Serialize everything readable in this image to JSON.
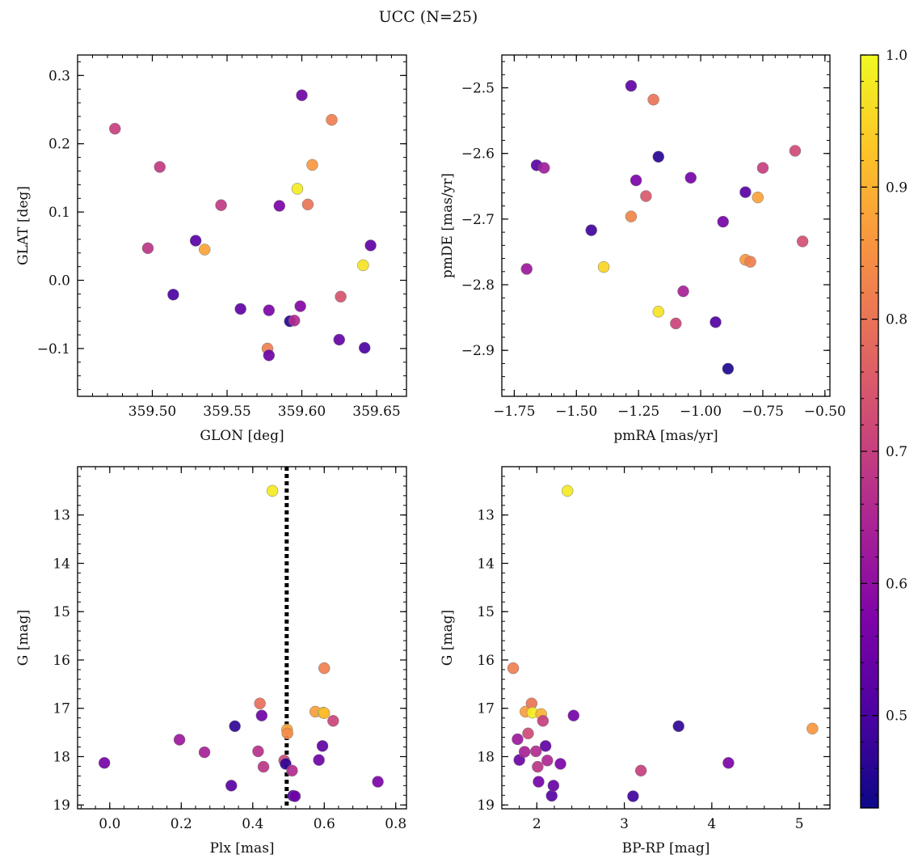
{
  "figure": {
    "title": "UCC (N=25)"
  },
  "colorbar": {
    "colormap": "plasma",
    "range": [
      0.43,
      1.0
    ],
    "ticks": [
      0.5,
      0.6,
      0.7,
      0.8,
      0.9,
      1.0
    ],
    "tick_labels": [
      "0.5",
      "0.6",
      "0.7",
      "0.8",
      "0.9",
      "1.0"
    ]
  },
  "chart_data": [
    {
      "type": "scatter",
      "id": "glon-glat",
      "xlabel": "GLON [deg]",
      "ylabel": "GLAT [deg]",
      "xlim": [
        359.45,
        359.67
      ],
      "ylim": [
        -0.17,
        0.33
      ],
      "xticks": [
        359.5,
        359.55,
        359.6,
        359.65
      ],
      "xtick_labels": [
        "359.50",
        "359.55",
        "359.60",
        "359.65"
      ],
      "yticks": [
        -0.1,
        0.0,
        0.1,
        0.2,
        0.3
      ],
      "ytick_labels": [
        "−0.1",
        "0.0",
        "0.1",
        "0.2",
        "0.3"
      ],
      "points": [
        {
          "x": 359.475,
          "y": 0.222,
          "c": 0.7
        },
        {
          "x": 359.505,
          "y": 0.166,
          "c": 0.69
        },
        {
          "x": 359.497,
          "y": 0.047,
          "c": 0.68
        },
        {
          "x": 359.514,
          "y": -0.021,
          "c": 0.5
        },
        {
          "x": 359.529,
          "y": 0.058,
          "c": 0.52
        },
        {
          "x": 359.535,
          "y": 0.045,
          "c": 0.88
        },
        {
          "x": 359.546,
          "y": 0.11,
          "c": 0.69
        },
        {
          "x": 359.559,
          "y": -0.042,
          "c": 0.53
        },
        {
          "x": 359.577,
          "y": -0.1,
          "c": 0.82
        },
        {
          "x": 359.578,
          "y": -0.11,
          "c": 0.55
        },
        {
          "x": 359.578,
          "y": -0.044,
          "c": 0.57
        },
        {
          "x": 359.585,
          "y": 0.109,
          "c": 0.57
        },
        {
          "x": 359.592,
          "y": -0.06,
          "c": 0.46
        },
        {
          "x": 359.595,
          "y": -0.059,
          "c": 0.66
        },
        {
          "x": 359.597,
          "y": 0.134,
          "c": 0.98
        },
        {
          "x": 359.599,
          "y": -0.038,
          "c": 0.58
        },
        {
          "x": 359.6,
          "y": 0.271,
          "c": 0.55
        },
        {
          "x": 359.604,
          "y": 0.111,
          "c": 0.8
        },
        {
          "x": 359.607,
          "y": 0.169,
          "c": 0.86
        },
        {
          "x": 359.62,
          "y": 0.235,
          "c": 0.82
        },
        {
          "x": 359.625,
          "y": -0.087,
          "c": 0.54
        },
        {
          "x": 359.626,
          "y": -0.024,
          "c": 0.74
        },
        {
          "x": 359.641,
          "y": 0.022,
          "c": 0.97
        },
        {
          "x": 359.642,
          "y": -0.099,
          "c": 0.5
        },
        {
          "x": 359.646,
          "y": 0.051,
          "c": 0.53
        }
      ]
    },
    {
      "type": "scatter",
      "id": "pmra-pmde",
      "xlabel": "pmRA [mas/yr]",
      "ylabel": "pmDE [mas/yr]",
      "xlim": [
        -1.8,
        -0.48
      ],
      "ylim": [
        -2.97,
        -2.45
      ],
      "xticks": [
        -1.75,
        -1.5,
        -1.25,
        -1.0,
        -0.75,
        -0.5
      ],
      "xtick_labels": [
        "−1.75",
        "−1.50",
        "−1.25",
        "−1.00",
        "−0.75",
        "−0.50"
      ],
      "yticks": [
        -2.9,
        -2.8,
        -2.7,
        -2.6,
        -2.5
      ],
      "ytick_labels": [
        "−2.9",
        "−2.8",
        "−2.7",
        "−2.6",
        "−2.5"
      ],
      "points": [
        {
          "x": -1.7,
          "y": -2.776,
          "c": 0.62
        },
        {
          "x": -1.66,
          "y": -2.618,
          "c": 0.52
        },
        {
          "x": -1.63,
          "y": -2.622,
          "c": 0.63
        },
        {
          "x": -1.44,
          "y": -2.717,
          "c": 0.49
        },
        {
          "x": -1.39,
          "y": -2.773,
          "c": 0.95
        },
        {
          "x": -1.28,
          "y": -2.497,
          "c": 0.53
        },
        {
          "x": -1.28,
          "y": -2.696,
          "c": 0.83
        },
        {
          "x": -1.26,
          "y": -2.641,
          "c": 0.57
        },
        {
          "x": -1.22,
          "y": -2.665,
          "c": 0.75
        },
        {
          "x": -1.19,
          "y": -2.518,
          "c": 0.8
        },
        {
          "x": -1.17,
          "y": -2.605,
          "c": 0.46
        },
        {
          "x": -1.17,
          "y": -2.841,
          "c": 0.97
        },
        {
          "x": -1.1,
          "y": -2.859,
          "c": 0.71
        },
        {
          "x": -1.07,
          "y": -2.81,
          "c": 0.64
        },
        {
          "x": -1.04,
          "y": -2.637,
          "c": 0.56
        },
        {
          "x": -0.94,
          "y": -2.857,
          "c": 0.51
        },
        {
          "x": -0.91,
          "y": -2.704,
          "c": 0.56
        },
        {
          "x": -0.89,
          "y": -2.928,
          "c": 0.45
        },
        {
          "x": -0.82,
          "y": -2.659,
          "c": 0.52
        },
        {
          "x": -0.82,
          "y": -2.762,
          "c": 0.86
        },
        {
          "x": -0.8,
          "y": -2.765,
          "c": 0.82
        },
        {
          "x": -0.77,
          "y": -2.667,
          "c": 0.88
        },
        {
          "x": -0.75,
          "y": -2.622,
          "c": 0.7
        },
        {
          "x": -0.62,
          "y": -2.596,
          "c": 0.72
        },
        {
          "x": -0.59,
          "y": -2.734,
          "c": 0.73
        }
      ]
    },
    {
      "type": "scatter",
      "id": "plx-g",
      "xlabel": "Plx [mas]",
      "ylabel": "G [mag]",
      "xlim": [
        -0.09,
        0.83
      ],
      "ylim": [
        19.08,
        12.0
      ],
      "y_inverted": true,
      "xticks": [
        0.0,
        0.2,
        0.4,
        0.6,
        0.8
      ],
      "xtick_labels": [
        "0.0",
        "0.2",
        "0.4",
        "0.6",
        "0.8"
      ],
      "yticks": [
        13,
        14,
        15,
        16,
        17,
        18,
        19
      ],
      "ytick_labels": [
        "13",
        "14",
        "15",
        "16",
        "17",
        "18",
        "19"
      ],
      "reference_line": {
        "orientation": "vertical",
        "x": 0.495,
        "style": "dotted"
      },
      "points": [
        {
          "x": -0.015,
          "y": 18.13,
          "c": 0.56
        },
        {
          "x": 0.195,
          "y": 17.65,
          "c": 0.62
        },
        {
          "x": 0.265,
          "y": 17.91,
          "c": 0.64
        },
        {
          "x": 0.34,
          "y": 18.6,
          "c": 0.52
        },
        {
          "x": 0.35,
          "y": 17.37,
          "c": 0.47
        },
        {
          "x": 0.415,
          "y": 17.89,
          "c": 0.67
        },
        {
          "x": 0.42,
          "y": 16.9,
          "c": 0.79
        },
        {
          "x": 0.425,
          "y": 17.15,
          "c": 0.55
        },
        {
          "x": 0.43,
          "y": 18.21,
          "c": 0.68
        },
        {
          "x": 0.455,
          "y": 12.5,
          "c": 0.98
        },
        {
          "x": 0.488,
          "y": 18.08,
          "c": 0.72
        },
        {
          "x": 0.492,
          "y": 18.15,
          "c": 0.47
        },
        {
          "x": 0.496,
          "y": 17.44,
          "c": 0.88
        },
        {
          "x": 0.497,
          "y": 17.52,
          "c": 0.84
        },
        {
          "x": 0.51,
          "y": 18.29,
          "c": 0.66
        },
        {
          "x": 0.513,
          "y": 18.81,
          "c": 0.5
        },
        {
          "x": 0.518,
          "y": 18.82,
          "c": 0.55
        },
        {
          "x": 0.575,
          "y": 17.07,
          "c": 0.87
        },
        {
          "x": 0.585,
          "y": 18.07,
          "c": 0.55
        },
        {
          "x": 0.595,
          "y": 17.78,
          "c": 0.53
        },
        {
          "x": 0.597,
          "y": 17.09,
          "c": 0.98
        },
        {
          "x": 0.6,
          "y": 17.1,
          "c": 0.91
        },
        {
          "x": 0.6,
          "y": 16.17,
          "c": 0.82
        },
        {
          "x": 0.625,
          "y": 17.26,
          "c": 0.71
        },
        {
          "x": 0.75,
          "y": 18.52,
          "c": 0.57
        }
      ]
    },
    {
      "type": "scatter",
      "id": "bprp-g",
      "xlabel": "BP-RP [mag]",
      "ylabel": "G [mag]",
      "xlim": [
        1.6,
        5.35
      ],
      "ylim": [
        19.08,
        12.0
      ],
      "y_inverted": true,
      "xticks": [
        2,
        3,
        4,
        5
      ],
      "xtick_labels": [
        "2",
        "3",
        "4",
        "5"
      ],
      "yticks": [
        13,
        14,
        15,
        16,
        17,
        18,
        19
      ],
      "ytick_labels": [
        "13",
        "14",
        "15",
        "16",
        "17",
        "18",
        "19"
      ],
      "points": [
        {
          "x": 1.73,
          "y": 16.17,
          "c": 0.82
        },
        {
          "x": 1.78,
          "y": 17.64,
          "c": 0.62
        },
        {
          "x": 1.8,
          "y": 18.07,
          "c": 0.55
        },
        {
          "x": 1.86,
          "y": 17.9,
          "c": 0.64
        },
        {
          "x": 1.87,
          "y": 17.07,
          "c": 0.87
        },
        {
          "x": 1.9,
          "y": 17.52,
          "c": 0.72
        },
        {
          "x": 1.94,
          "y": 16.9,
          "c": 0.8
        },
        {
          "x": 1.95,
          "y": 17.09,
          "c": 0.98
        },
        {
          "x": 1.99,
          "y": 17.89,
          "c": 0.66
        },
        {
          "x": 2.01,
          "y": 18.21,
          "c": 0.68
        },
        {
          "x": 2.02,
          "y": 18.52,
          "c": 0.56
        },
        {
          "x": 2.05,
          "y": 17.12,
          "c": 0.9
        },
        {
          "x": 2.07,
          "y": 17.26,
          "c": 0.7
        },
        {
          "x": 2.1,
          "y": 17.78,
          "c": 0.53
        },
        {
          "x": 2.12,
          "y": 18.08,
          "c": 0.65
        },
        {
          "x": 2.17,
          "y": 18.81,
          "c": 0.52
        },
        {
          "x": 2.19,
          "y": 18.6,
          "c": 0.54
        },
        {
          "x": 2.27,
          "y": 18.15,
          "c": 0.57
        },
        {
          "x": 2.35,
          "y": 12.5,
          "c": 0.98
        },
        {
          "x": 2.42,
          "y": 17.15,
          "c": 0.56
        },
        {
          "x": 3.1,
          "y": 18.82,
          "c": 0.49
        },
        {
          "x": 3.19,
          "y": 18.29,
          "c": 0.7
        },
        {
          "x": 3.62,
          "y": 17.37,
          "c": 0.47
        },
        {
          "x": 4.19,
          "y": 18.13,
          "c": 0.57
        },
        {
          "x": 5.15,
          "y": 17.42,
          "c": 0.86
        }
      ]
    }
  ]
}
